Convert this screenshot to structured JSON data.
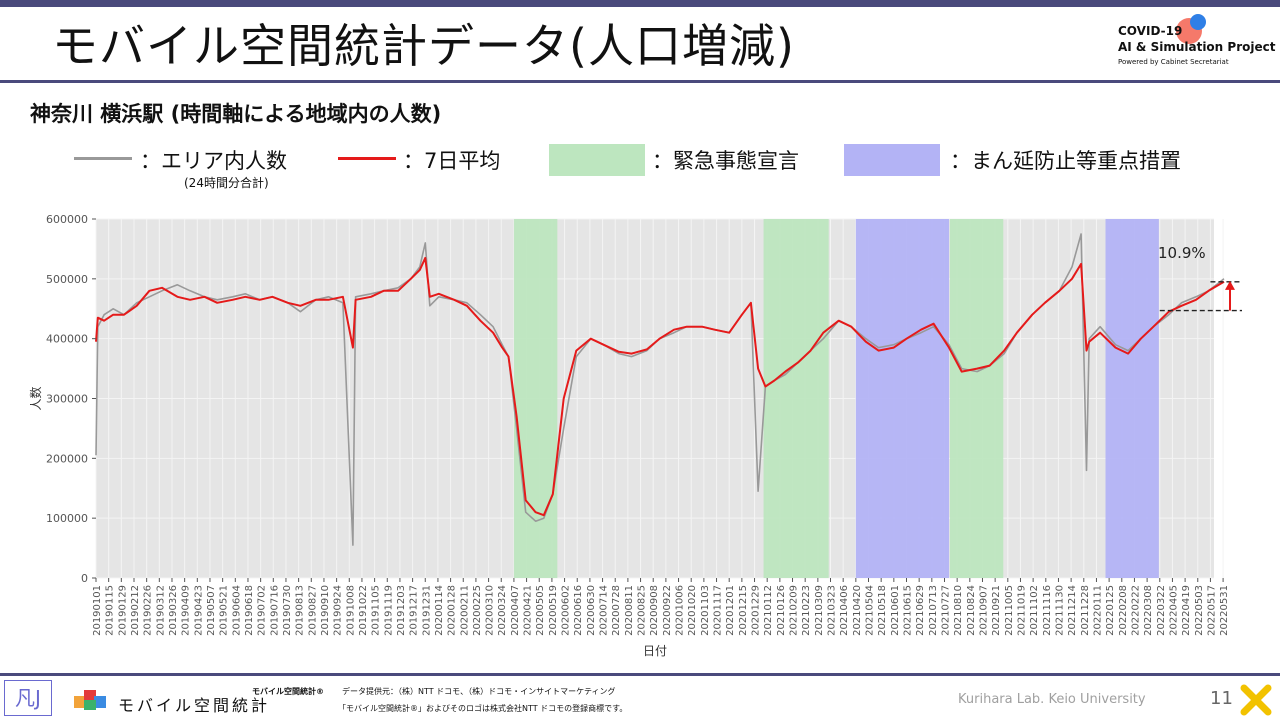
{
  "header": {
    "title": "モバイル空間統計データ(人口増減)",
    "logo_line1": "COVID-19",
    "logo_line2": "AI & Simulation Project",
    "logo_line3": "Powered by Cabinet Secretariat"
  },
  "subtitle": "神奈川 横浜駅 (時間軸による地域内の人数)",
  "legend": {
    "area_count": "：エリア内人数",
    "area_count_note": "(24時間分合計)",
    "avg7": "：7日平均",
    "emergency": "：緊急事態宣言",
    "priority": "：まん延防止等重点措置"
  },
  "colors": {
    "raw": "#999999",
    "avg": "#e51a1a",
    "emergency": "#bde6bf",
    "priority": "#b3b3f5",
    "plot_bg": "#e5e5e5",
    "brand": "#4a4a7c"
  },
  "chart_data": {
    "type": "line",
    "xlabel": "日付",
    "ylabel": "人数",
    "ylim": [
      0,
      600000
    ],
    "yticks": [
      0,
      100000,
      200000,
      300000,
      400000,
      500000,
      600000
    ],
    "annotation": "10.9%",
    "xticks": [
      "20190101",
      "20190115",
      "20190129",
      "20190212",
      "20190226",
      "20190312",
      "20190326",
      "20190409",
      "20190423",
      "20190507",
      "20190521",
      "20190604",
      "20190618",
      "20190702",
      "20190716",
      "20190730",
      "20190813",
      "20190827",
      "20190910",
      "20190924",
      "20191008",
      "20191022",
      "20191105",
      "20191119",
      "20191203",
      "20191217",
      "20191231",
      "20200114",
      "20200128",
      "20200211",
      "20200225",
      "20200310",
      "20200324",
      "20200407",
      "20200421",
      "20200505",
      "20200519",
      "20200602",
      "20200616",
      "20200630",
      "20200714",
      "20200728",
      "20200811",
      "20200825",
      "20200908",
      "20200922",
      "20201006",
      "20201020",
      "20201103",
      "20201117",
      "20201201",
      "20201215",
      "20201229",
      "20210112",
      "20210126",
      "20210209",
      "20210223",
      "20210309",
      "20210323",
      "20210406",
      "20210420",
      "20210504",
      "20210518",
      "20210601",
      "20210615",
      "20210629",
      "20210713",
      "20210727",
      "20210810",
      "20210824",
      "20210907",
      "20210921",
      "20211005",
      "20211019",
      "20211102",
      "20211116",
      "20211130",
      "20211214",
      "20211228",
      "20220111",
      "20220125",
      "20220208",
      "20220222",
      "20220308",
      "20220322",
      "20220405",
      "20220419",
      "20220503",
      "20220517",
      "20220531"
    ],
    "shaded_periods": [
      {
        "kind": "emergency",
        "start": "20200407",
        "end": "20200525"
      },
      {
        "kind": "emergency",
        "start": "20210108",
        "end": "20210321"
      },
      {
        "kind": "priority",
        "start": "20210420",
        "end": "20210801"
      },
      {
        "kind": "emergency",
        "start": "20210802",
        "end": "20210930"
      },
      {
        "kind": "priority",
        "start": "20220121",
        "end": "20220321"
      }
    ],
    "series": [
      {
        "name": "エリア内人数",
        "role": "raw",
        "note": "(24時間分合計)",
        "x": [
          "20190101",
          "20190103",
          "20190110",
          "20190120",
          "20190201",
          "20190215",
          "20190301",
          "20190315",
          "20190401",
          "20190415",
          "20190501",
          "20190515",
          "20190601",
          "20190615",
          "20190701",
          "20190715",
          "20190801",
          "20190815",
          "20190901",
          "20190915",
          "20191001",
          "20191012",
          "20191015",
          "20191101",
          "20191115",
          "20191201",
          "20191215",
          "20191225",
          "20191231",
          "20200105",
          "20200115",
          "20200201",
          "20200215",
          "20200301",
          "20200315",
          "20200325",
          "20200401",
          "20200410",
          "20200420",
          "20200501",
          "20200510",
          "20200520",
          "20200601",
          "20200615",
          "20200701",
          "20200715",
          "20200801",
          "20200815",
          "20200901",
          "20200915",
          "20201001",
          "20201015",
          "20201101",
          "20201115",
          "20201201",
          "20201215",
          "20201225",
          "20210102",
          "20210110",
          "20210120",
          "20210201",
          "20210215",
          "20210301",
          "20210315",
          "20210401",
          "20210415",
          "20210501",
          "20210515",
          "20210601",
          "20210615",
          "20210701",
          "20210715",
          "20210801",
          "20210815",
          "20210901",
          "20210915",
          "20211001",
          "20211015",
          "20211101",
          "20211115",
          "20211201",
          "20211215",
          "20211225",
          "20211231",
          "20220103",
          "20220115",
          "20220201",
          "20220215",
          "20220301",
          "20220315",
          "20220401",
          "20220415",
          "20220501",
          "20220515",
          "20220601"
        ],
        "y": [
          205000,
          420000,
          440000,
          450000,
          440000,
          460000,
          470000,
          480000,
          490000,
          480000,
          470000,
          465000,
          470000,
          475000,
          465000,
          470000,
          460000,
          445000,
          465000,
          470000,
          460000,
          55000,
          470000,
          475000,
          480000,
          485000,
          500000,
          520000,
          560000,
          455000,
          470000,
          465000,
          460000,
          440000,
          420000,
          390000,
          370000,
          250000,
          110000,
          95000,
          100000,
          140000,
          250000,
          370000,
          400000,
          390000,
          375000,
          370000,
          380000,
          400000,
          410000,
          420000,
          420000,
          415000,
          410000,
          440000,
          460000,
          145000,
          320000,
          330000,
          340000,
          360000,
          380000,
          400000,
          430000,
          420000,
          400000,
          385000,
          390000,
          400000,
          410000,
          420000,
          390000,
          350000,
          345000,
          355000,
          375000,
          410000,
          440000,
          460000,
          480000,
          520000,
          575000,
          180000,
          400000,
          420000,
          390000,
          380000,
          400000,
          420000,
          440000,
          460000,
          470000,
          480000,
          500000
        ]
      },
      {
        "name": "7日平均",
        "role": "avg",
        "x": [
          "20190101",
          "20190103",
          "20190110",
          "20190120",
          "20190201",
          "20190215",
          "20190301",
          "20190315",
          "20190401",
          "20190415",
          "20190501",
          "20190515",
          "20190601",
          "20190615",
          "20190701",
          "20190715",
          "20190801",
          "20190815",
          "20190901",
          "20190915",
          "20191001",
          "20191012",
          "20191015",
          "20191101",
          "20191115",
          "20191201",
          "20191215",
          "20191225",
          "20191231",
          "20200105",
          "20200115",
          "20200201",
          "20200215",
          "20200301",
          "20200315",
          "20200325",
          "20200401",
          "20200410",
          "20200420",
          "20200501",
          "20200510",
          "20200520",
          "20200601",
          "20200615",
          "20200701",
          "20200715",
          "20200801",
          "20200815",
          "20200901",
          "20200915",
          "20201001",
          "20201015",
          "20201101",
          "20201115",
          "20201201",
          "20201215",
          "20201225",
          "20210102",
          "20210110",
          "20210120",
          "20210201",
          "20210215",
          "20210301",
          "20210315",
          "20210401",
          "20210415",
          "20210501",
          "20210515",
          "20210601",
          "20210615",
          "20210701",
          "20210715",
          "20210801",
          "20210815",
          "20210901",
          "20210915",
          "20211001",
          "20211015",
          "20211101",
          "20211115",
          "20211201",
          "20211215",
          "20211225",
          "20211231",
          "20220103",
          "20220115",
          "20220201",
          "20220215",
          "20220301",
          "20220315",
          "20220401",
          "20220415",
          "20220501",
          "20220515",
          "20220601"
        ],
        "y": [
          395000,
          435000,
          430000,
          440000,
          440000,
          455000,
          480000,
          485000,
          470000,
          465000,
          470000,
          460000,
          465000,
          470000,
          465000,
          470000,
          460000,
          455000,
          465000,
          465000,
          470000,
          385000,
          465000,
          470000,
          480000,
          480000,
          500000,
          515000,
          535000,
          470000,
          475000,
          465000,
          455000,
          430000,
          410000,
          385000,
          370000,
          270000,
          130000,
          110000,
          105000,
          140000,
          300000,
          380000,
          400000,
          390000,
          378000,
          375000,
          382000,
          400000,
          415000,
          420000,
          420000,
          415000,
          410000,
          440000,
          460000,
          350000,
          320000,
          330000,
          345000,
          360000,
          380000,
          410000,
          430000,
          420000,
          395000,
          380000,
          385000,
          400000,
          415000,
          425000,
          385000,
          345000,
          350000,
          355000,
          380000,
          410000,
          440000,
          460000,
          480000,
          500000,
          525000,
          380000,
          395000,
          410000,
          385000,
          375000,
          400000,
          420000,
          445000,
          455000,
          465000,
          480000,
          495000
        ]
      }
    ]
  },
  "footer": {
    "brand_text": "モバイル空間統計",
    "brand_small": "モバイル空間統計®",
    "provider": "データ提供元：（株）NTT ドコモ、（株）ドコモ・インサイトマーケティング",
    "trademark": "「モバイル空間統計®」およびそのロゴは株式会社NTT ドコモの登録商標です。",
    "lab": "Kurihara Lab. Keio University",
    "page": "11",
    "lab_logo": "凡J"
  }
}
